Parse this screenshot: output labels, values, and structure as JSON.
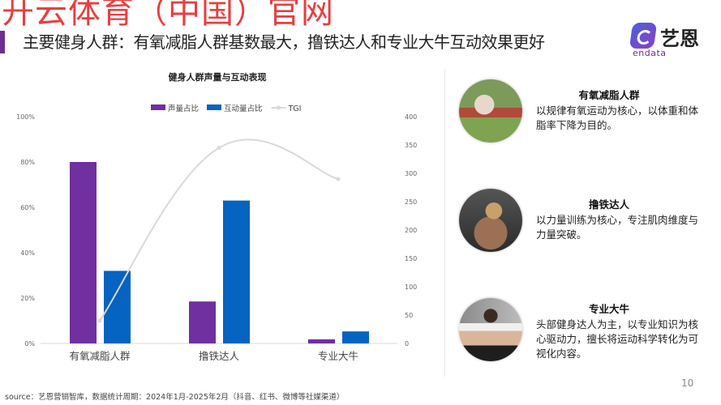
{
  "watermark": "开云体育（中国）官网",
  "header": {
    "title": "主要健身人群：有氧减脂人群基数最大，撸铁达人和专业大牛互动效果更好"
  },
  "logo": {
    "cn": "艺恩",
    "en": "endata"
  },
  "colors": {
    "accent": "#6f2c91",
    "volume": "#7030a0",
    "interaction": "#0563c1",
    "tgi": "#d9d9d9"
  },
  "chart_data": {
    "type": "bar",
    "title": "健身人群声量与互动表现",
    "categories": [
      "有氧减脂人群",
      "撸铁达人",
      "专业大牛"
    ],
    "series": [
      {
        "name": "声量占比",
        "type": "bar",
        "axis": "left",
        "values": [
          80,
          18.5,
          1.8
        ]
      },
      {
        "name": "互动量占比",
        "type": "bar",
        "axis": "left",
        "values": [
          32,
          63,
          5.3
        ]
      },
      {
        "name": "TGI",
        "type": "line",
        "axis": "right",
        "smooth": true,
        "values": [
          40,
          345,
          290
        ]
      }
    ],
    "y_left": {
      "ylim": [
        0,
        100
      ],
      "ticks": [
        "0%",
        "20%",
        "40%",
        "60%",
        "80%",
        "100%"
      ]
    },
    "y_right": {
      "ylim": [
        0,
        400
      ],
      "ticks": [
        "0",
        "50",
        "100",
        "150",
        "200",
        "250",
        "300",
        "350",
        "400"
      ]
    },
    "legend": "top",
    "grid": false
  },
  "cards": [
    {
      "title": "有氧减脂人群",
      "desc": "以规律有氧运动为核心，以体重和体脂率下降为目的。"
    },
    {
      "title": "撸铁达人",
      "desc": "以力量训练为核心，专注肌肉维度与力量突破。"
    },
    {
      "title": "专业大牛",
      "desc": "头部健身达人为主，以专业知识为核心驱动力，擅长将运动科学转化为可视化内容。"
    }
  ],
  "footer": {
    "source": "source：艺恩营销智库，数据统计周期：2024年1月-2025年2月（抖音、红书、微博等社媒渠道）",
    "page": "10"
  }
}
